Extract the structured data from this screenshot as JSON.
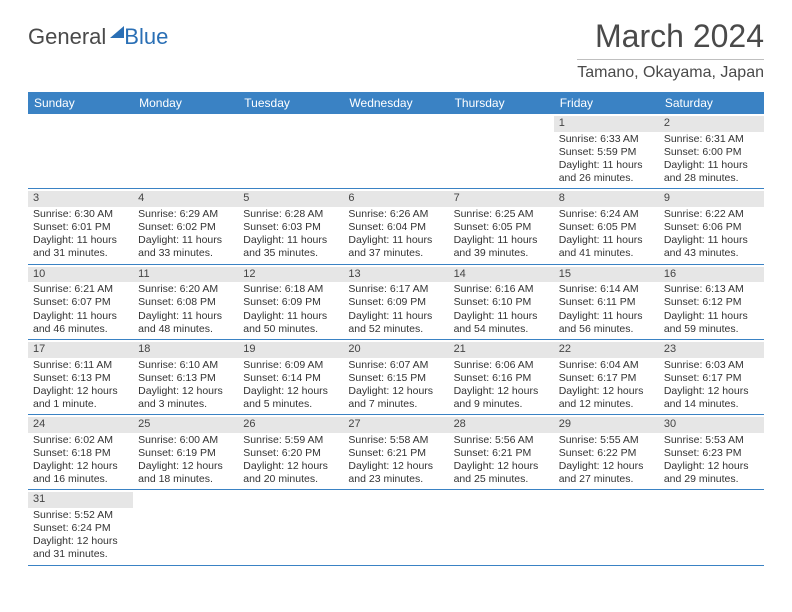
{
  "logo": {
    "part1": "General",
    "part2": "Blue"
  },
  "title": "March 2024",
  "location": "Tamano, Okayama, Japan",
  "colors": {
    "header_bg": "#3a82c4",
    "daynum_bg": "#e6e6e6",
    "rule": "#3a82c4",
    "text": "#333333",
    "logo_blue": "#2a6fb5"
  },
  "dayNames": [
    "Sunday",
    "Monday",
    "Tuesday",
    "Wednesday",
    "Thursday",
    "Friday",
    "Saturday"
  ],
  "weeks": [
    [
      null,
      null,
      null,
      null,
      null,
      {
        "n": "1",
        "sr": "Sunrise: 6:33 AM",
        "ss": "Sunset: 5:59 PM",
        "dl": "Daylight: 11 hours and 26 minutes."
      },
      {
        "n": "2",
        "sr": "Sunrise: 6:31 AM",
        "ss": "Sunset: 6:00 PM",
        "dl": "Daylight: 11 hours and 28 minutes."
      }
    ],
    [
      {
        "n": "3",
        "sr": "Sunrise: 6:30 AM",
        "ss": "Sunset: 6:01 PM",
        "dl": "Daylight: 11 hours and 31 minutes."
      },
      {
        "n": "4",
        "sr": "Sunrise: 6:29 AM",
        "ss": "Sunset: 6:02 PM",
        "dl": "Daylight: 11 hours and 33 minutes."
      },
      {
        "n": "5",
        "sr": "Sunrise: 6:28 AM",
        "ss": "Sunset: 6:03 PM",
        "dl": "Daylight: 11 hours and 35 minutes."
      },
      {
        "n": "6",
        "sr": "Sunrise: 6:26 AM",
        "ss": "Sunset: 6:04 PM",
        "dl": "Daylight: 11 hours and 37 minutes."
      },
      {
        "n": "7",
        "sr": "Sunrise: 6:25 AM",
        "ss": "Sunset: 6:05 PM",
        "dl": "Daylight: 11 hours and 39 minutes."
      },
      {
        "n": "8",
        "sr": "Sunrise: 6:24 AM",
        "ss": "Sunset: 6:05 PM",
        "dl": "Daylight: 11 hours and 41 minutes."
      },
      {
        "n": "9",
        "sr": "Sunrise: 6:22 AM",
        "ss": "Sunset: 6:06 PM",
        "dl": "Daylight: 11 hours and 43 minutes."
      }
    ],
    [
      {
        "n": "10",
        "sr": "Sunrise: 6:21 AM",
        "ss": "Sunset: 6:07 PM",
        "dl": "Daylight: 11 hours and 46 minutes."
      },
      {
        "n": "11",
        "sr": "Sunrise: 6:20 AM",
        "ss": "Sunset: 6:08 PM",
        "dl": "Daylight: 11 hours and 48 minutes."
      },
      {
        "n": "12",
        "sr": "Sunrise: 6:18 AM",
        "ss": "Sunset: 6:09 PM",
        "dl": "Daylight: 11 hours and 50 minutes."
      },
      {
        "n": "13",
        "sr": "Sunrise: 6:17 AM",
        "ss": "Sunset: 6:09 PM",
        "dl": "Daylight: 11 hours and 52 minutes."
      },
      {
        "n": "14",
        "sr": "Sunrise: 6:16 AM",
        "ss": "Sunset: 6:10 PM",
        "dl": "Daylight: 11 hours and 54 minutes."
      },
      {
        "n": "15",
        "sr": "Sunrise: 6:14 AM",
        "ss": "Sunset: 6:11 PM",
        "dl": "Daylight: 11 hours and 56 minutes."
      },
      {
        "n": "16",
        "sr": "Sunrise: 6:13 AM",
        "ss": "Sunset: 6:12 PM",
        "dl": "Daylight: 11 hours and 59 minutes."
      }
    ],
    [
      {
        "n": "17",
        "sr": "Sunrise: 6:11 AM",
        "ss": "Sunset: 6:13 PM",
        "dl": "Daylight: 12 hours and 1 minute."
      },
      {
        "n": "18",
        "sr": "Sunrise: 6:10 AM",
        "ss": "Sunset: 6:13 PM",
        "dl": "Daylight: 12 hours and 3 minutes."
      },
      {
        "n": "19",
        "sr": "Sunrise: 6:09 AM",
        "ss": "Sunset: 6:14 PM",
        "dl": "Daylight: 12 hours and 5 minutes."
      },
      {
        "n": "20",
        "sr": "Sunrise: 6:07 AM",
        "ss": "Sunset: 6:15 PM",
        "dl": "Daylight: 12 hours and 7 minutes."
      },
      {
        "n": "21",
        "sr": "Sunrise: 6:06 AM",
        "ss": "Sunset: 6:16 PM",
        "dl": "Daylight: 12 hours and 9 minutes."
      },
      {
        "n": "22",
        "sr": "Sunrise: 6:04 AM",
        "ss": "Sunset: 6:17 PM",
        "dl": "Daylight: 12 hours and 12 minutes."
      },
      {
        "n": "23",
        "sr": "Sunrise: 6:03 AM",
        "ss": "Sunset: 6:17 PM",
        "dl": "Daylight: 12 hours and 14 minutes."
      }
    ],
    [
      {
        "n": "24",
        "sr": "Sunrise: 6:02 AM",
        "ss": "Sunset: 6:18 PM",
        "dl": "Daylight: 12 hours and 16 minutes."
      },
      {
        "n": "25",
        "sr": "Sunrise: 6:00 AM",
        "ss": "Sunset: 6:19 PM",
        "dl": "Daylight: 12 hours and 18 minutes."
      },
      {
        "n": "26",
        "sr": "Sunrise: 5:59 AM",
        "ss": "Sunset: 6:20 PM",
        "dl": "Daylight: 12 hours and 20 minutes."
      },
      {
        "n": "27",
        "sr": "Sunrise: 5:58 AM",
        "ss": "Sunset: 6:21 PM",
        "dl": "Daylight: 12 hours and 23 minutes."
      },
      {
        "n": "28",
        "sr": "Sunrise: 5:56 AM",
        "ss": "Sunset: 6:21 PM",
        "dl": "Daylight: 12 hours and 25 minutes."
      },
      {
        "n": "29",
        "sr": "Sunrise: 5:55 AM",
        "ss": "Sunset: 6:22 PM",
        "dl": "Daylight: 12 hours and 27 minutes."
      },
      {
        "n": "30",
        "sr": "Sunrise: 5:53 AM",
        "ss": "Sunset: 6:23 PM",
        "dl": "Daylight: 12 hours and 29 minutes."
      }
    ],
    [
      {
        "n": "31",
        "sr": "Sunrise: 5:52 AM",
        "ss": "Sunset: 6:24 PM",
        "dl": "Daylight: 12 hours and 31 minutes."
      },
      null,
      null,
      null,
      null,
      null,
      null
    ]
  ]
}
